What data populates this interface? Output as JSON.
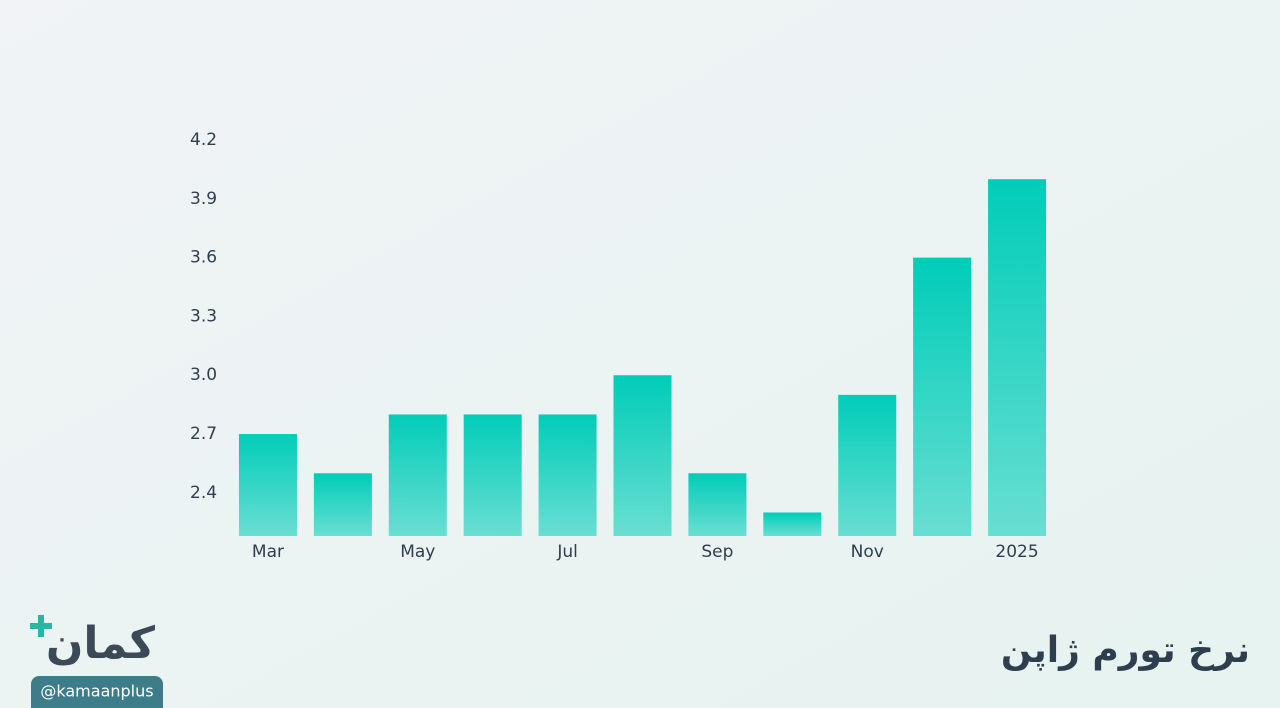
{
  "chart_data": {
    "type": "bar",
    "title": "نرخ تورم ژاپن",
    "categories": [
      "Mar",
      null,
      "May",
      null,
      "Jul",
      null,
      "Sep",
      null,
      "Nov",
      null,
      "2025"
    ],
    "values": [
      2.7,
      2.5,
      2.8,
      2.8,
      2.8,
      3.0,
      2.5,
      2.3,
      2.9,
      3.6,
      4.0
    ],
    "color": "#00cdb8",
    "ylim": [
      2.18,
      4.2
    ],
    "yticks": [
      2.4,
      2.7,
      {
        "value": 3.0,
        "label": "3.0"
      },
      3.3,
      3.6,
      3.9,
      4.2
    ],
    "grid": false
  },
  "brand": {
    "logo": "کمان",
    "handle": "@kamaanplus"
  }
}
